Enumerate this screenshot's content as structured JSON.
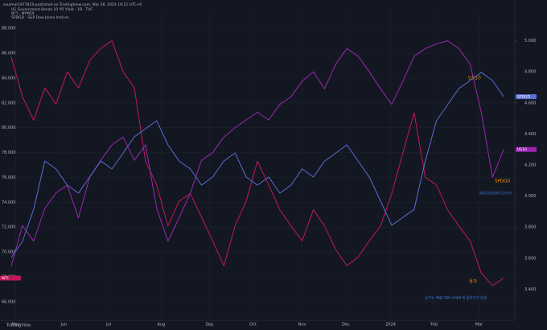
{
  "header": "saulmor1977819 published on TradingView.com, Mar 18, 2024 19:12 UTC+9",
  "legend_lines": [
    "US Government Bonds 10 YR Yield · 1D · TVC",
    "WTI · NYMEX",
    "SPDGD · S&P Dow Jones Indices"
  ],
  "annotations": {
    "us10": "US10",
    "spx": "SPDGD",
    "oil": "유가",
    "note1": "달러강세 및 채권 금리상승에도 최근 올라가는 추세",
    "note2": "유가는 재료 대비 우세하게 올라가고 있음"
  },
  "brand": "TradingView",
  "chart_data": {
    "type": "line",
    "x": [
      0,
      1,
      2,
      3,
      4,
      5,
      6,
      7,
      8,
      9,
      10,
      11,
      12,
      13,
      14,
      15,
      16,
      17,
      18,
      19,
      20,
      21,
      22,
      23,
      24,
      25,
      26,
      27,
      28,
      29,
      30,
      31,
      32,
      33,
      34,
      35,
      36,
      37,
      38,
      39,
      40,
      41,
      42,
      43,
      44
    ],
    "xlim": [
      0,
      45
    ],
    "xticks": [
      {
        "value": 0.4,
        "label": "May"
      },
      {
        "value": 4.7,
        "label": "Jun"
      },
      {
        "value": 8.7,
        "label": "Jul"
      },
      {
        "value": 13.4,
        "label": "Aug"
      },
      {
        "value": 17.7,
        "label": "Sep"
      },
      {
        "value": 21.6,
        "label": "Oct"
      },
      {
        "value": 26,
        "label": "Nov"
      },
      {
        "value": 29.9,
        "label": "Dec"
      },
      {
        "value": 33.9,
        "label": "2024"
      },
      {
        "value": 37.8,
        "label": "Feb"
      },
      {
        "value": 41.8,
        "label": "Mar"
      }
    ],
    "ylim": [
      64.5,
      89.5
    ],
    "yticks": [
      {
        "value": 66,
        "label": "66.000"
      },
      {
        "value": 68,
        "label": "68.000"
      },
      {
        "value": 70,
        "label": "70.000"
      },
      {
        "value": 72,
        "label": "72.000"
      },
      {
        "value": 74,
        "label": "74.000"
      },
      {
        "value": 76,
        "label": "76.000"
      },
      {
        "value": 78,
        "label": "78.000"
      },
      {
        "value": 80,
        "label": "80.000"
      },
      {
        "value": 82,
        "label": "82.000"
      },
      {
        "value": 84,
        "label": "84.000"
      },
      {
        "value": 86,
        "label": "86.000"
      },
      {
        "value": 88,
        "label": "88.000"
      }
    ],
    "y2lim": [
      3.2,
      5.2
    ],
    "y2ticks": [
      {
        "value": 3.4,
        "label": "3.400"
      },
      {
        "value": 3.6,
        "label": "3.600"
      },
      {
        "value": 3.8,
        "label": "3.800"
      },
      {
        "value": 4,
        "label": "4.000"
      },
      {
        "value": 4.2,
        "label": "4.200"
      },
      {
        "value": 4.4,
        "label": "4.400"
      },
      {
        "value": 4.6,
        "label": "4.600"
      },
      {
        "value": 4.8,
        "label": "4.800"
      },
      {
        "value": 5,
        "label": "5.000"
      }
    ],
    "y3lim": [
      3800,
      5300
    ],
    "grid": true,
    "series": [
      {
        "name": "WTI",
        "color": "#c2185b",
        "axis": "y",
        "values": [
          85.7,
          82.5,
          80.6,
          83.2,
          81.9,
          84.5,
          83.2,
          85.4,
          86.4,
          87.0,
          84.5,
          83.2,
          77.3,
          75.4,
          72.1,
          74.1,
          74.7,
          72.8,
          70.9,
          68.9,
          72.1,
          74.1,
          77.3,
          75.4,
          73.4,
          72.1,
          70.9,
          73.4,
          72.1,
          70.2,
          68.9,
          69.6,
          70.9,
          72.1,
          74.7,
          78.0,
          81.2,
          76.0,
          75.4,
          73.4,
          72.1,
          70.9,
          68.3,
          67.3,
          67.9
        ]
      },
      {
        "name": "US10",
        "color": "#9c27b0",
        "axis": "y2",
        "values": [
          3.55,
          3.81,
          3.71,
          3.92,
          4.02,
          4.07,
          3.86,
          4.12,
          4.23,
          4.33,
          4.38,
          4.23,
          4.33,
          3.92,
          3.71,
          3.86,
          4.02,
          4.23,
          4.28,
          4.38,
          4.44,
          4.49,
          4.54,
          4.49,
          4.59,
          4.64,
          4.74,
          4.8,
          4.69,
          4.85,
          4.95,
          4.9,
          4.8,
          4.69,
          4.59,
          4.74,
          4.9,
          4.95,
          4.98,
          5.0,
          4.95,
          4.85,
          4.54,
          4.12,
          4.3
        ]
      },
      {
        "name": "SPDGD",
        "color": "#5b6fd6",
        "axis": "y3",
        "values": [
          4103,
          4181,
          4336,
          4569,
          4531,
          4453,
          4414,
          4492,
          4569,
          4531,
          4608,
          4686,
          4725,
          4764,
          4647,
          4569,
          4531,
          4453,
          4492,
          4569,
          4608,
          4492,
          4453,
          4492,
          4414,
          4453,
          4531,
          4492,
          4569,
          4608,
          4647,
          4569,
          4492,
          4375,
          4259,
          4297,
          4336,
          4569,
          4764,
          4841,
          4919,
          4958,
          4997,
          4958,
          4880
        ]
      }
    ]
  }
}
